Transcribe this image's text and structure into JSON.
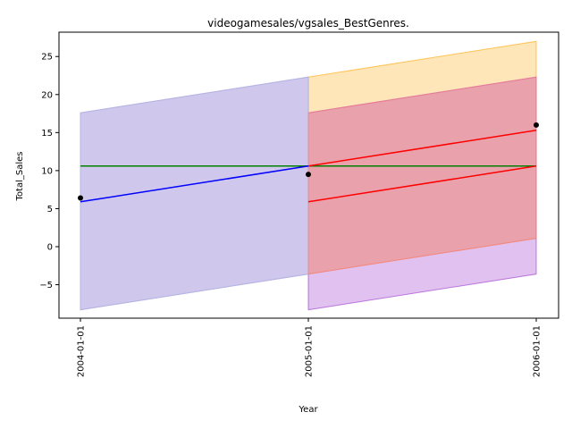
{
  "chart_data": {
    "type": "line",
    "title": "videogamesales/vgsales_BestGenres.",
    "xlabel": "Year",
    "ylabel": "Total_Sales",
    "x_ticks": [
      "2004-01-01",
      "2005-01-01",
      "2006-01-01"
    ],
    "ylim": [
      -9.4,
      28.2
    ],
    "y_ticks": [
      -5,
      0,
      5,
      10,
      15,
      20,
      25
    ],
    "grid": false,
    "legend": "none",
    "scatter": {
      "color": "#000000",
      "points": [
        {
          "x": "2004-01-01",
          "y": 6.4
        },
        {
          "x": "2005-01-01",
          "y": 9.5
        },
        {
          "x": "2006-01-01",
          "y": 16.0
        }
      ]
    },
    "bands": [
      {
        "color": "#ffa500",
        "opacity": 0.28,
        "x": [
          "2005-01-01",
          "2006-01-01"
        ],
        "lower": [
          -3.6,
          1.1
        ],
        "upper": [
          22.3,
          27.0
        ]
      },
      {
        "color": "#9932cc",
        "opacity": 0.3,
        "x": [
          "2004-01-01",
          "2005-01-01"
        ],
        "lower": [
          -8.3,
          -3.6
        ],
        "upper": [
          17.6,
          22.3
        ]
      },
      {
        "color": "#9932cc",
        "opacity": 0.3,
        "x": [
          "2005-01-01",
          "2006-01-01"
        ],
        "lower": [
          -8.3,
          -3.6
        ],
        "upper": [
          17.6,
          22.3
        ]
      },
      {
        "color": "#add8e6",
        "opacity": 0.3,
        "x": [
          "2004-01-01",
          "2005-01-01"
        ],
        "lower": [
          -8.3,
          -3.6
        ],
        "upper": [
          17.6,
          22.3
        ]
      },
      {
        "color": "#ff8080",
        "opacity": 0.3,
        "x": [
          "2005-01-01",
          "2006-01-01"
        ],
        "lower": [
          -3.6,
          1.1
        ],
        "upper": [
          17.6,
          22.3
        ]
      }
    ],
    "lines": [
      {
        "color": "#008000",
        "x": [
          "2004-01-01",
          "2006-01-01"
        ],
        "y": [
          10.6,
          10.6
        ]
      },
      {
        "color": "#0000ff",
        "x": [
          "2004-01-01",
          "2005-01-01"
        ],
        "y": [
          5.9,
          10.6
        ]
      },
      {
        "color": "#ff0000",
        "x": [
          "2005-01-01",
          "2006-01-01"
        ],
        "y": [
          10.6,
          15.3
        ]
      },
      {
        "color": "#ff0000",
        "x": [
          "2005-01-01",
          "2006-01-01"
        ],
        "y": [
          5.9,
          10.6
        ]
      }
    ]
  }
}
